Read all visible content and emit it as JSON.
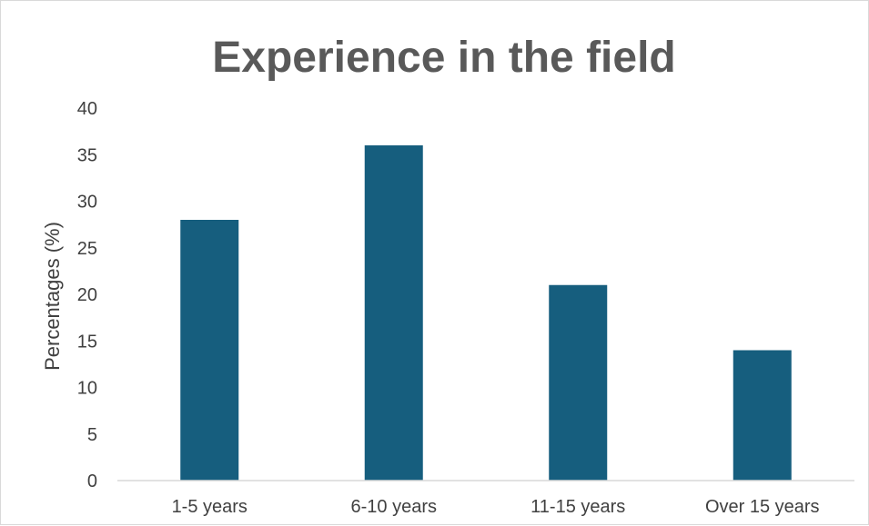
{
  "chart_data": {
    "type": "bar",
    "title": "Experience in the field",
    "xlabel": "",
    "ylabel": "Percentages (%)",
    "categories": [
      "1-5 years",
      "6-10 years",
      "11-15 years",
      "Over 15 years"
    ],
    "values": [
      28,
      36,
      21,
      14
    ],
    "ylim": [
      0,
      40
    ],
    "yticks": [
      0,
      5,
      10,
      15,
      20,
      25,
      30,
      35,
      40
    ],
    "grid": false,
    "legend": "none",
    "colors": {
      "bar": "#165e7e",
      "axis": "#d9d9d9"
    }
  }
}
